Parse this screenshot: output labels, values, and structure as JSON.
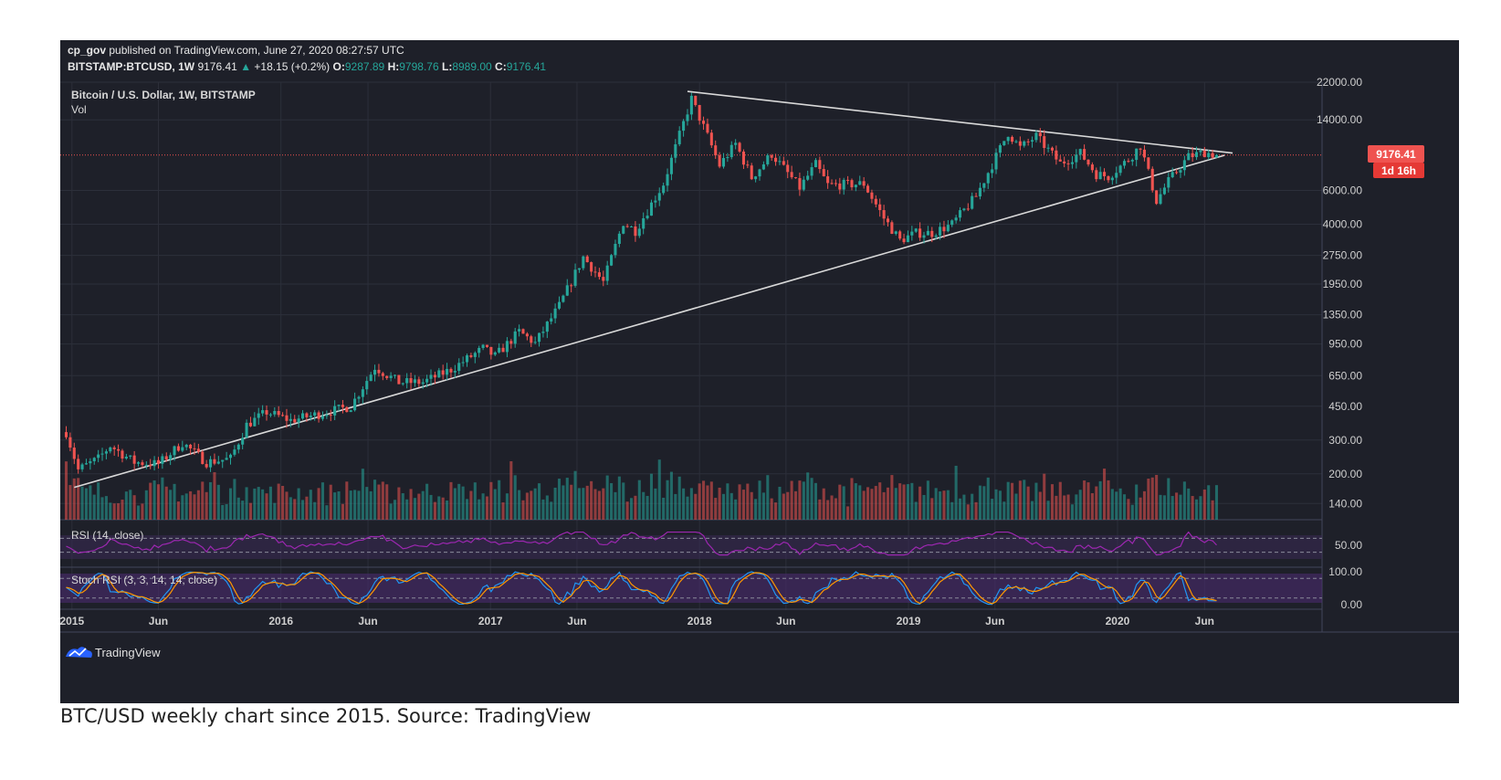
{
  "header": {
    "publisher": "cp_gov",
    "published_text": "published on TradingView.com, June 27, 2020 08:27:57 UTC",
    "symbol": "BITSTAMP:BTCUSD, 1W",
    "last": "9176.41",
    "change": "+18.15 (+0.2%)",
    "open_label": "O:",
    "open": "9287.89",
    "high_label": "H:",
    "high": "9798.76",
    "low_label": "L:",
    "low": "8989.00",
    "close_label": "C:",
    "close": "9176.41"
  },
  "pane_labels": {
    "main_title": "Bitcoin / U.S. Dollar, 1W, BITSTAMP",
    "volume": "Vol",
    "rsi": "RSI (14, close)",
    "stoch_rsi": "Stoch RSI (3, 3, 14, 14, close)"
  },
  "price_badge": {
    "value": "9176.41",
    "countdown": "1d 16h"
  },
  "logo": {
    "text": "TradingView"
  },
  "caption": "BTC/USD weekly chart since 2015. Source: TradingView",
  "colors": {
    "background": "#1e2029",
    "grid": "#2c2f3a",
    "up": "#26a69a",
    "down": "#ef5350",
    "trendline": "#d9d9d9",
    "rsi_line": "#9c27b0",
    "stoch_k": "#2196f3",
    "stoch_d": "#ff9800",
    "price_line": "#ef5350"
  },
  "chart_data": {
    "type": "candlestick",
    "interval": "1W",
    "symbol": "BITSTAMP:BTCUSD",
    "y_scale": "log",
    "ylim": [
      100,
      22000
    ],
    "y_ticks": [
      "22000.00",
      "14000.00",
      "9176.41",
      "6000.00",
      "4000.00",
      "2750.00",
      "1950.00",
      "1350.00",
      "950.00",
      "650.00",
      "450.00",
      "300.00",
      "200.00",
      "140.00"
    ],
    "x_ticks": [
      "2015",
      "Jun",
      "2016",
      "Jun",
      "2017",
      "Jun",
      "2018",
      "Jun",
      "2019",
      "Jun",
      "2020",
      "Jun"
    ],
    "x_tick_dates": [
      "2015-01-01",
      "2015-06-01",
      "2016-01-01",
      "2016-06-01",
      "2017-01-01",
      "2017-06-01",
      "2018-01-01",
      "2018-06-01",
      "2019-01-01",
      "2019-06-01",
      "2020-01-01",
      "2020-06-01"
    ],
    "price_path": [
      [
        "2014-12-22",
        330
      ],
      [
        "2015-01-12",
        210
      ],
      [
        "2015-02-16",
        240
      ],
      [
        "2015-03-09",
        280
      ],
      [
        "2015-04-20",
        230
      ],
      [
        "2015-06-01",
        225
      ],
      [
        "2015-07-13",
        290
      ],
      [
        "2015-08-24",
        230
      ],
      [
        "2015-10-05",
        240
      ],
      [
        "2015-11-02",
        360
      ],
      [
        "2015-12-07",
        420
      ],
      [
        "2016-01-18",
        380
      ],
      [
        "2016-03-07",
        410
      ],
      [
        "2016-05-02",
        450
      ],
      [
        "2016-06-13",
        720
      ],
      [
        "2016-07-25",
        600
      ],
      [
        "2016-09-05",
        600
      ],
      [
        "2016-10-24",
        700
      ],
      [
        "2016-12-19",
        900
      ],
      [
        "2017-01-09",
        820
      ],
      [
        "2017-02-20",
        1100
      ],
      [
        "2017-03-20",
        960
      ],
      [
        "2017-05-01",
        1500
      ],
      [
        "2017-06-12",
        2700
      ],
      [
        "2017-07-17",
        2000
      ],
      [
        "2017-08-21",
        4100
      ],
      [
        "2017-09-11",
        3700
      ],
      [
        "2017-10-30",
        6500
      ],
      [
        "2017-12-18",
        18000
      ],
      [
        "2018-01-15",
        11500
      ],
      [
        "2018-02-05",
        8100
      ],
      [
        "2018-03-05",
        10500
      ],
      [
        "2018-04-02",
        7000
      ],
      [
        "2018-05-07",
        9300
      ],
      [
        "2018-06-25",
        6200
      ],
      [
        "2018-07-23",
        8200
      ],
      [
        "2018-08-13",
        6400
      ],
      [
        "2018-10-15",
        6500
      ],
      [
        "2018-11-19",
        4300
      ],
      [
        "2018-12-17",
        3300
      ],
      [
        "2019-01-14",
        3600
      ],
      [
        "2019-02-11",
        3600
      ],
      [
        "2019-03-18",
        4000
      ],
      [
        "2019-04-29",
        5600
      ],
      [
        "2019-06-24",
        12000
      ],
      [
        "2019-07-15",
        10000
      ],
      [
        "2019-08-12",
        11500
      ],
      [
        "2019-09-23",
        8300
      ],
      [
        "2019-10-28",
        9400
      ],
      [
        "2019-11-25",
        7300
      ],
      [
        "2019-12-16",
        7100
      ],
      [
        "2020-01-20",
        8700
      ],
      [
        "2020-02-10",
        10300
      ],
      [
        "2020-03-09",
        5300
      ],
      [
        "2020-03-30",
        6700
      ],
      [
        "2020-05-04",
        9000
      ],
      [
        "2020-06-01",
        9500
      ],
      [
        "2020-06-22",
        9176
      ]
    ],
    "trendlines": [
      {
        "name": "",
        "from": [
          "2015-01-05",
          170
        ],
        "to": [
          "2020-07-06",
          9150
        ]
      },
      {
        "name": "",
        "from": [
          "2017-12-11",
          19700
        ],
        "to": [
          "2020-07-20",
          9400
        ]
      }
    ],
    "current_price": 9176.41,
    "volume": {
      "label": "Vol"
    },
    "rsi": {
      "label": "RSI (14, close)",
      "ticks": [
        "50.00"
      ],
      "levels": [
        30,
        70
      ]
    },
    "stoch_rsi": {
      "label": "Stoch RSI (3, 3, 14, 14, close)",
      "ticks": [
        "100.00",
        "0.00"
      ],
      "levels": [
        20,
        80
      ]
    }
  }
}
